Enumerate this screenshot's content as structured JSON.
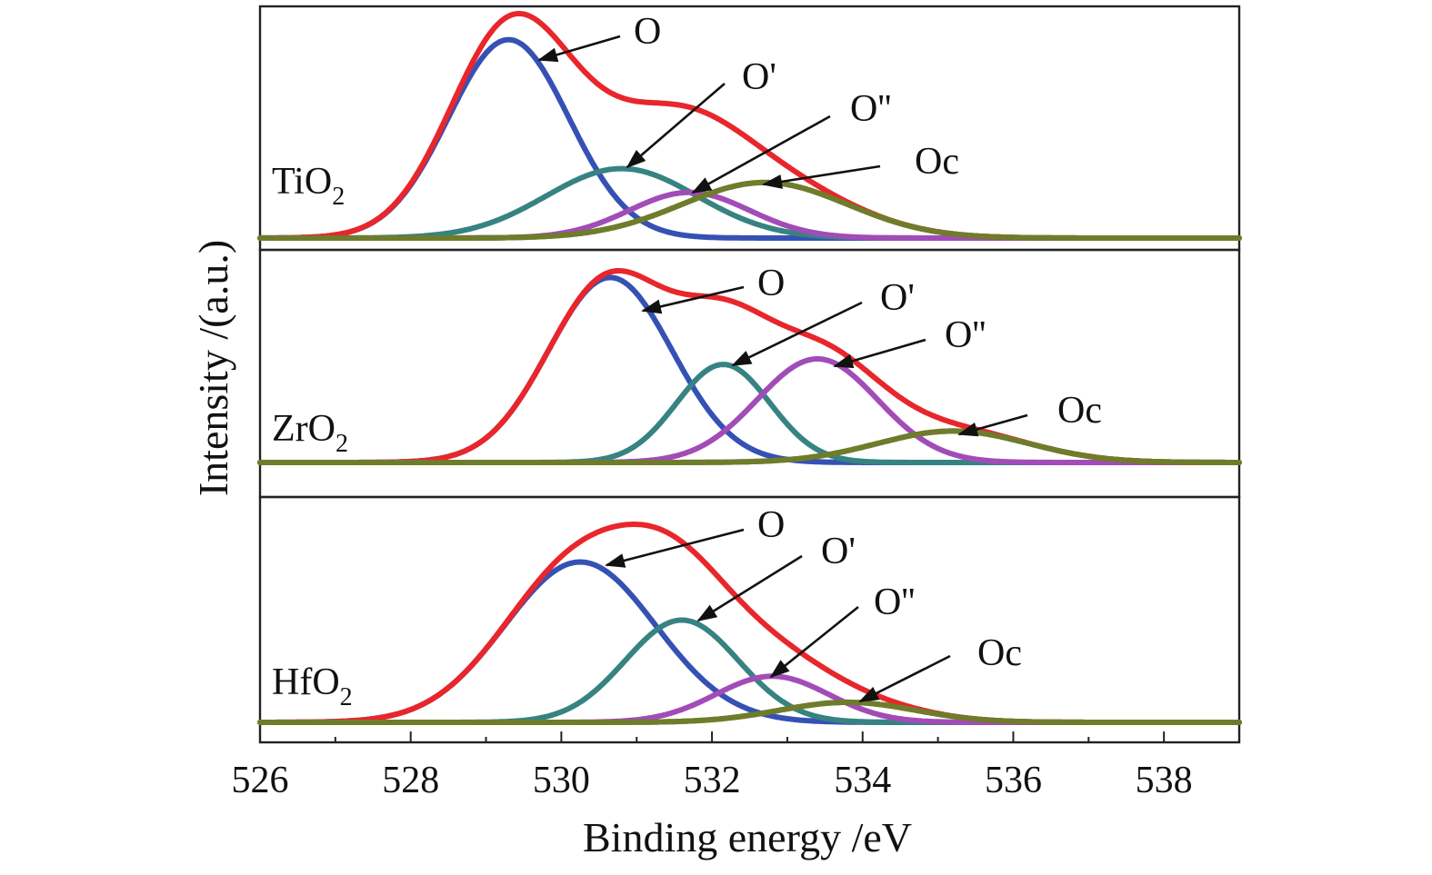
{
  "chart_data": {
    "type": "line",
    "xlabel": "Binding energy /eV",
    "ylabel": "Intensity /(a.u.)",
    "xlim": [
      526,
      539
    ],
    "x_ticks": [
      "526",
      "528",
      "530",
      "532",
      "534",
      "536",
      "538"
    ],
    "grid": false,
    "legend": "none",
    "panels": [
      {
        "label": "TiO",
        "label_sub": "2",
        "total_color": "#e8262b",
        "components": [
          {
            "name": "O",
            "label": "O",
            "center": 529.3,
            "height": 1.0,
            "width": 0.8,
            "color": "#3651b4"
          },
          {
            "name": "O'",
            "label": "O'",
            "center": 530.8,
            "height": 0.35,
            "width": 1.0,
            "color": "#368382"
          },
          {
            "name": "O''",
            "label": "O''",
            "center": 531.7,
            "height": 0.23,
            "width": 0.8,
            "color": "#a24cb8"
          },
          {
            "name": "Oc",
            "label": "Oc",
            "center": 532.7,
            "height": 0.28,
            "width": 1.1,
            "color": "#6f7c2b"
          }
        ]
      },
      {
        "label": "ZrO",
        "label_sub": "2",
        "total_color": "#e8262b",
        "components": [
          {
            "name": "O",
            "label": "O",
            "center": 530.65,
            "height": 1.0,
            "width": 0.82,
            "color": "#3651b4"
          },
          {
            "name": "O'",
            "label": "O'",
            "center": 532.15,
            "height": 0.53,
            "width": 0.62,
            "color": "#368382"
          },
          {
            "name": "O''",
            "label": "O''",
            "center": 533.4,
            "height": 0.56,
            "width": 0.8,
            "color": "#a24cb8"
          },
          {
            "name": "Oc",
            "label": "Oc",
            "center": 535.2,
            "height": 0.17,
            "width": 1.0,
            "color": "#6f7c2b"
          }
        ]
      },
      {
        "label": "HfO",
        "label_sub": "2",
        "total_color": "#e8262b",
        "components": [
          {
            "name": "O",
            "label": "O",
            "center": 530.25,
            "height": 0.8,
            "width": 1.0,
            "color": "#3651b4"
          },
          {
            "name": "O'",
            "label": "O'",
            "center": 531.6,
            "height": 0.51,
            "width": 0.75,
            "color": "#368382"
          },
          {
            "name": "O''",
            "label": "O''",
            "center": 532.8,
            "height": 0.23,
            "width": 0.75,
            "color": "#a24cb8"
          },
          {
            "name": "Oc",
            "label": "Oc",
            "center": 533.8,
            "height": 0.1,
            "width": 0.9,
            "color": "#6f7c2b"
          }
        ]
      }
    ]
  }
}
